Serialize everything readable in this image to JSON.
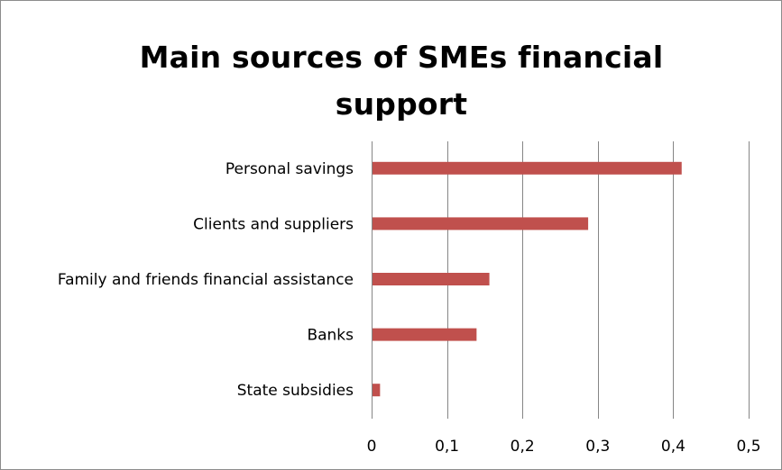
{
  "chart_data": {
    "type": "bar",
    "orientation": "horizontal",
    "title": "Main sources of SMEs financial support",
    "xlabel": "",
    "ylabel": "",
    "categories": [
      "Personal savings",
      "Clients and suppliers",
      "Family and friends  financial assistance",
      "Banks",
      "State subsidies"
    ],
    "values": [
      0.41,
      0.286,
      0.155,
      0.138,
      0.01
    ],
    "xlim": [
      0,
      0.5
    ],
    "xticks": [
      0,
      0.1,
      0.2,
      0.3,
      0.4,
      0.5
    ],
    "xtick_labels": [
      "0",
      "0,1",
      "0,2",
      "0,3",
      "0,4",
      "0,5"
    ],
    "grid": "vertical",
    "legend": "none",
    "bar_color": "#c0504d"
  }
}
